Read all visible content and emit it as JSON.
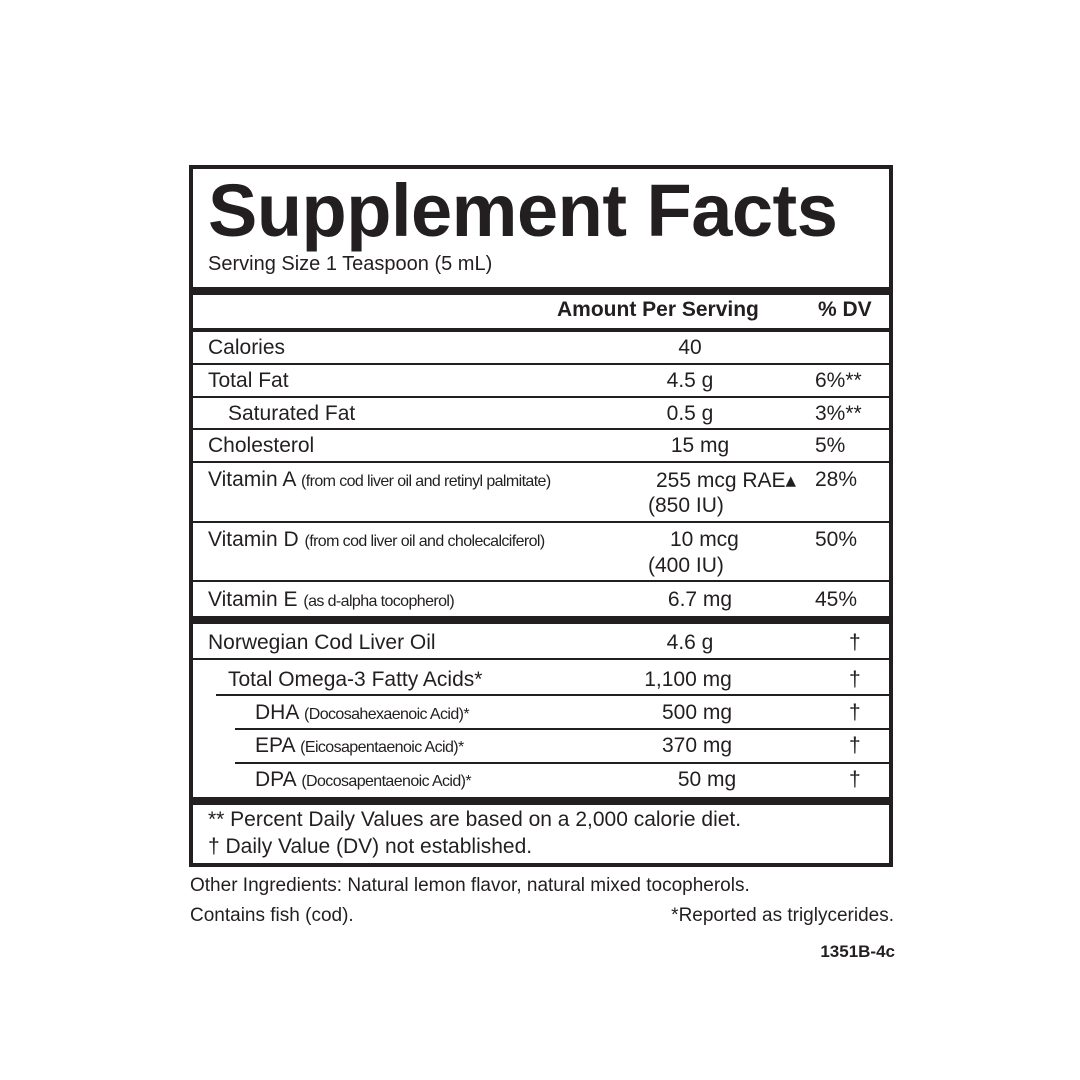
{
  "title": "Supplement Facts",
  "serving_size": "Serving Size 1 Teaspoon (5 mL)",
  "header": {
    "amount": "Amount Per Serving",
    "dv": "% DV"
  },
  "rows": [
    {
      "name": "Calories",
      "amount": "40",
      "dv": ""
    },
    {
      "name": "Total Fat",
      "amount": "4.5 g",
      "dv": "6%**"
    },
    {
      "name": "Saturated Fat",
      "amount": "0.5 g",
      "dv": "3%**"
    },
    {
      "name": "Cholesterol",
      "amount": "15 mg",
      "dv": "5%"
    },
    {
      "name": "Vitamin A",
      "detail": "(from cod liver oil and retinyl palmitate)",
      "amount": "255 mcg RAE▴",
      "amount2": "(850 IU)",
      "dv": "28%"
    },
    {
      "name": "Vitamin D",
      "detail": "(from cod liver oil and cholecalciferol)",
      "amount": "10 mcg",
      "amount2": "(400 IU)",
      "dv": "50%"
    },
    {
      "name": "Vitamin E",
      "detail": "(as d-alpha tocopherol)",
      "amount": "6.7 mg",
      "dv": "45%"
    },
    {
      "name": "Norwegian Cod Liver Oil",
      "amount": "4.6 g",
      "dv": "†"
    },
    {
      "name": "Total Omega-3 Fatty Acids*",
      "amount": "1,100 mg",
      "dv": "†"
    },
    {
      "name": "DHA",
      "detail": "(Docosahexaenoic Acid)*",
      "amount": "500 mg",
      "dv": "†"
    },
    {
      "name": "EPA",
      "detail": "(Eicosapentaenoic Acid)*",
      "amount": "370 mg",
      "dv": "†"
    },
    {
      "name": "DPA",
      "detail": "(Docosapentaenoic Acid)*",
      "amount": "50 mg",
      "dv": "†"
    }
  ],
  "footnotes": [
    "** Percent Daily Values are based on a 2,000 calorie diet.",
    "† Daily Value (DV) not established."
  ],
  "other_ingredients": "Other Ingredients: Natural lemon flavor, natural mixed tocopherols.",
  "allergen": "Contains fish (cod).",
  "triglycerides_note": "*Reported as triglycerides.",
  "code": "1351B-4c"
}
